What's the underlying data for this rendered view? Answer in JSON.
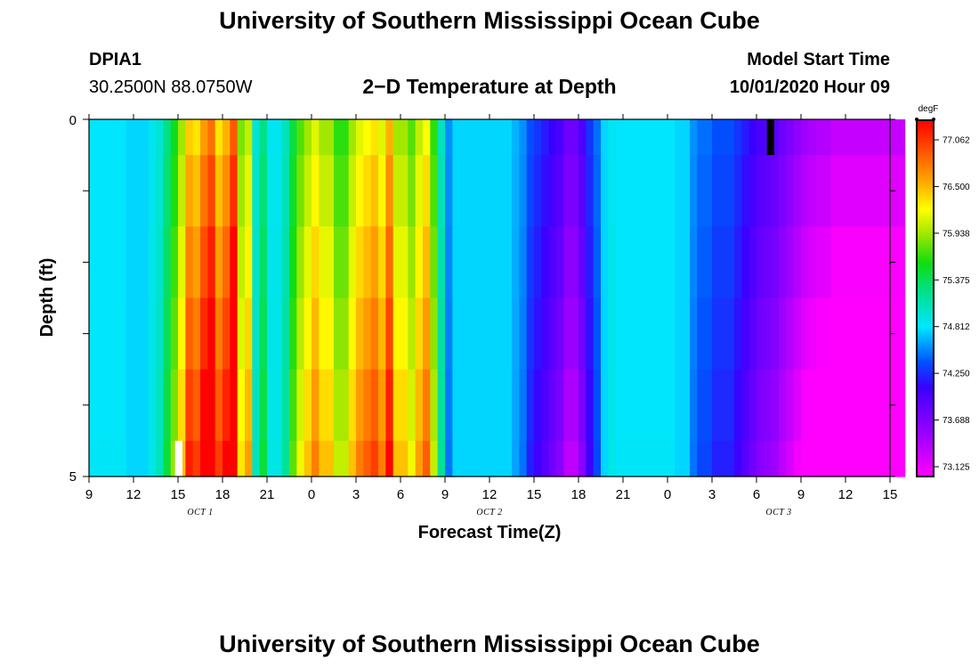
{
  "header": {
    "title": "University of Southern Mississippi Ocean Cube",
    "station_id": "DPIA1",
    "station_coords": "30.2500N 88.0750W",
    "plot_title": "2−D Temperature at Depth",
    "model_start_label": "Model Start Time",
    "model_start_value": "10/01/2020 Hour 09",
    "footer_title": "University of Southern Mississippi Ocean Cube"
  },
  "chart_data": {
    "type": "heatmap",
    "title": "2−D Temperature at Depth",
    "xlabel": "Forecast Time(Z)",
    "ylabel": "Depth (ft)",
    "x_range_hours": [
      0,
      54
    ],
    "y_range_ft": [
      0,
      5
    ],
    "y_labeled_ticks": [
      "0",
      "5"
    ],
    "y_minor_ticks_ft": [
      1,
      2,
      3,
      4
    ],
    "x_tick_labels": [
      "9",
      "12",
      "15",
      "18",
      "21",
      "0",
      "3",
      "6",
      "9",
      "12",
      "15",
      "18",
      "21",
      "0",
      "3",
      "6",
      "9",
      "12",
      "15"
    ],
    "x_tick_hours": [
      0,
      3,
      6,
      9,
      12,
      15,
      18,
      21,
      24,
      27,
      30,
      33,
      36,
      39,
      42,
      45,
      48,
      51,
      54
    ],
    "date_labels": [
      {
        "text": "OCT 1",
        "hour": 7.5
      },
      {
        "text": "OCT 2",
        "hour": 27
      },
      {
        "text": "OCT 3",
        "hour": 46.5
      }
    ],
    "depth_layers_ft": [
      [
        0,
        0.5
      ],
      [
        0.5,
        1.5
      ],
      [
        1.5,
        2.5
      ],
      [
        2.5,
        3.5
      ],
      [
        3.5,
        4.5
      ],
      [
        4.5,
        5
      ]
    ],
    "time_step_hours": 0.5,
    "surface_profile_degF": [
      74.75,
      74.75,
      74.75,
      74.75,
      74.75,
      74.7,
      74.7,
      74.7,
      74.8,
      74.9,
      75.2,
      75.5,
      75.9,
      76.4,
      76.3,
      76.6,
      76.8,
      76.3,
      76.5,
      76.9,
      75.8,
      76.0,
      74.9,
      75.2,
      74.8,
      74.8,
      75.0,
      75.4,
      75.7,
      75.9,
      76.1,
      75.9,
      75.9,
      75.6,
      75.6,
      75.9,
      76.1,
      76.2,
      76.3,
      76.1,
      76.5,
      75.9,
      75.9,
      75.7,
      76.0,
      76.2,
      75.6,
      75.0,
      74.5,
      74.7,
      74.7,
      74.7,
      74.7,
      74.7,
      74.7,
      74.7,
      74.7,
      74.6,
      74.5,
      74.3,
      74.2,
      74.1,
      74.0,
      73.9,
      73.7,
      73.7,
      73.9,
      74.2,
      74.4,
      74.7,
      74.8,
      74.75,
      74.75,
      74.75,
      74.75,
      74.75,
      74.75,
      74.75,
      74.75,
      74.7,
      74.7,
      74.5,
      74.4,
      74.4,
      74.3,
      74.3,
      74.3,
      74.2,
      74.1,
      74.0,
      73.9,
      73.85,
      73.8,
      73.7,
      73.6,
      73.5,
      73.4,
      73.35,
      73.3,
      73.3,
      73.2,
      73.2,
      73.2,
      73.2,
      73.2,
      73.2,
      73.2,
      73.2,
      73.2,
      73.2
    ],
    "colorbar": {
      "unit": "degF",
      "min": 72.9,
      "max": 77.3,
      "tick_values": [
        "77.062",
        "76.500",
        "75.938",
        "75.375",
        "74.812",
        "74.250",
        "73.688",
        "73.125"
      ]
    },
    "missing_marks": [
      {
        "color": "#000000",
        "hour_start": 45.7,
        "hour_end": 46.2,
        "depth_start": 0,
        "depth_end": 0.5
      },
      {
        "color": "#ffffff",
        "hour_start": 5.8,
        "hour_end": 6.3,
        "depth_start": 4.5,
        "depth_end": 5
      }
    ]
  }
}
